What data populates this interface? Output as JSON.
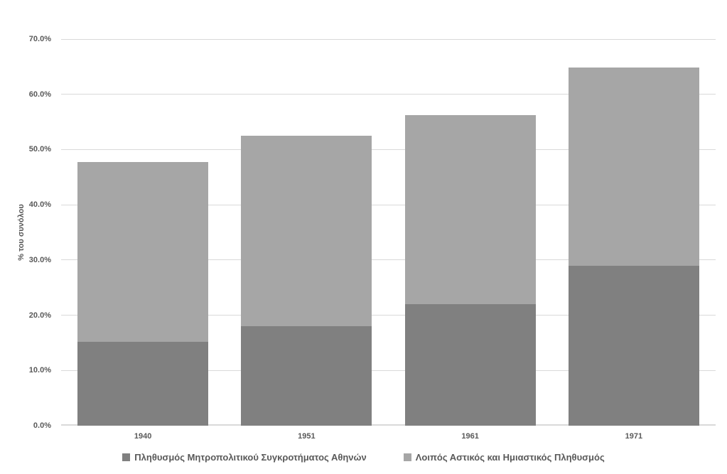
{
  "chart_data": {
    "type": "bar",
    "stacked": true,
    "title": "",
    "xlabel": "",
    "ylabel": "% του συνόλου",
    "categories": [
      "1940",
      "1951",
      "1961",
      "1971"
    ],
    "series": [
      {
        "name": "Πληθυσμός Μητροπολιτικού Συγκροτήματος Αθηνών",
        "color": "#808080",
        "values": [
          15.2,
          18.0,
          22.0,
          28.9
        ]
      },
      {
        "name": "Λοιπός Αστικός και Ημιαστικός Πληθυσμός",
        "color": "#a6a6a6",
        "values": [
          32.5,
          34.5,
          34.2,
          36.0
        ]
      }
    ],
    "stack_totals": [
      47.7,
      52.5,
      56.2,
      64.9
    ],
    "ylim": [
      0,
      70
    ],
    "ytick_values": [
      0,
      10,
      20,
      30,
      40,
      50,
      60,
      70
    ],
    "ytick_labels": [
      "0.0%",
      "10.0%",
      "20.0%",
      "30.0%",
      "40.0%",
      "50.0%",
      "60.0%",
      "70.0%"
    ],
    "grid": true,
    "legend_position": "bottom",
    "colors": {
      "gridline": "#d9d9d9",
      "axis_line": "#d9d9d9",
      "text": "#595959",
      "background": "#ffffff"
    }
  }
}
